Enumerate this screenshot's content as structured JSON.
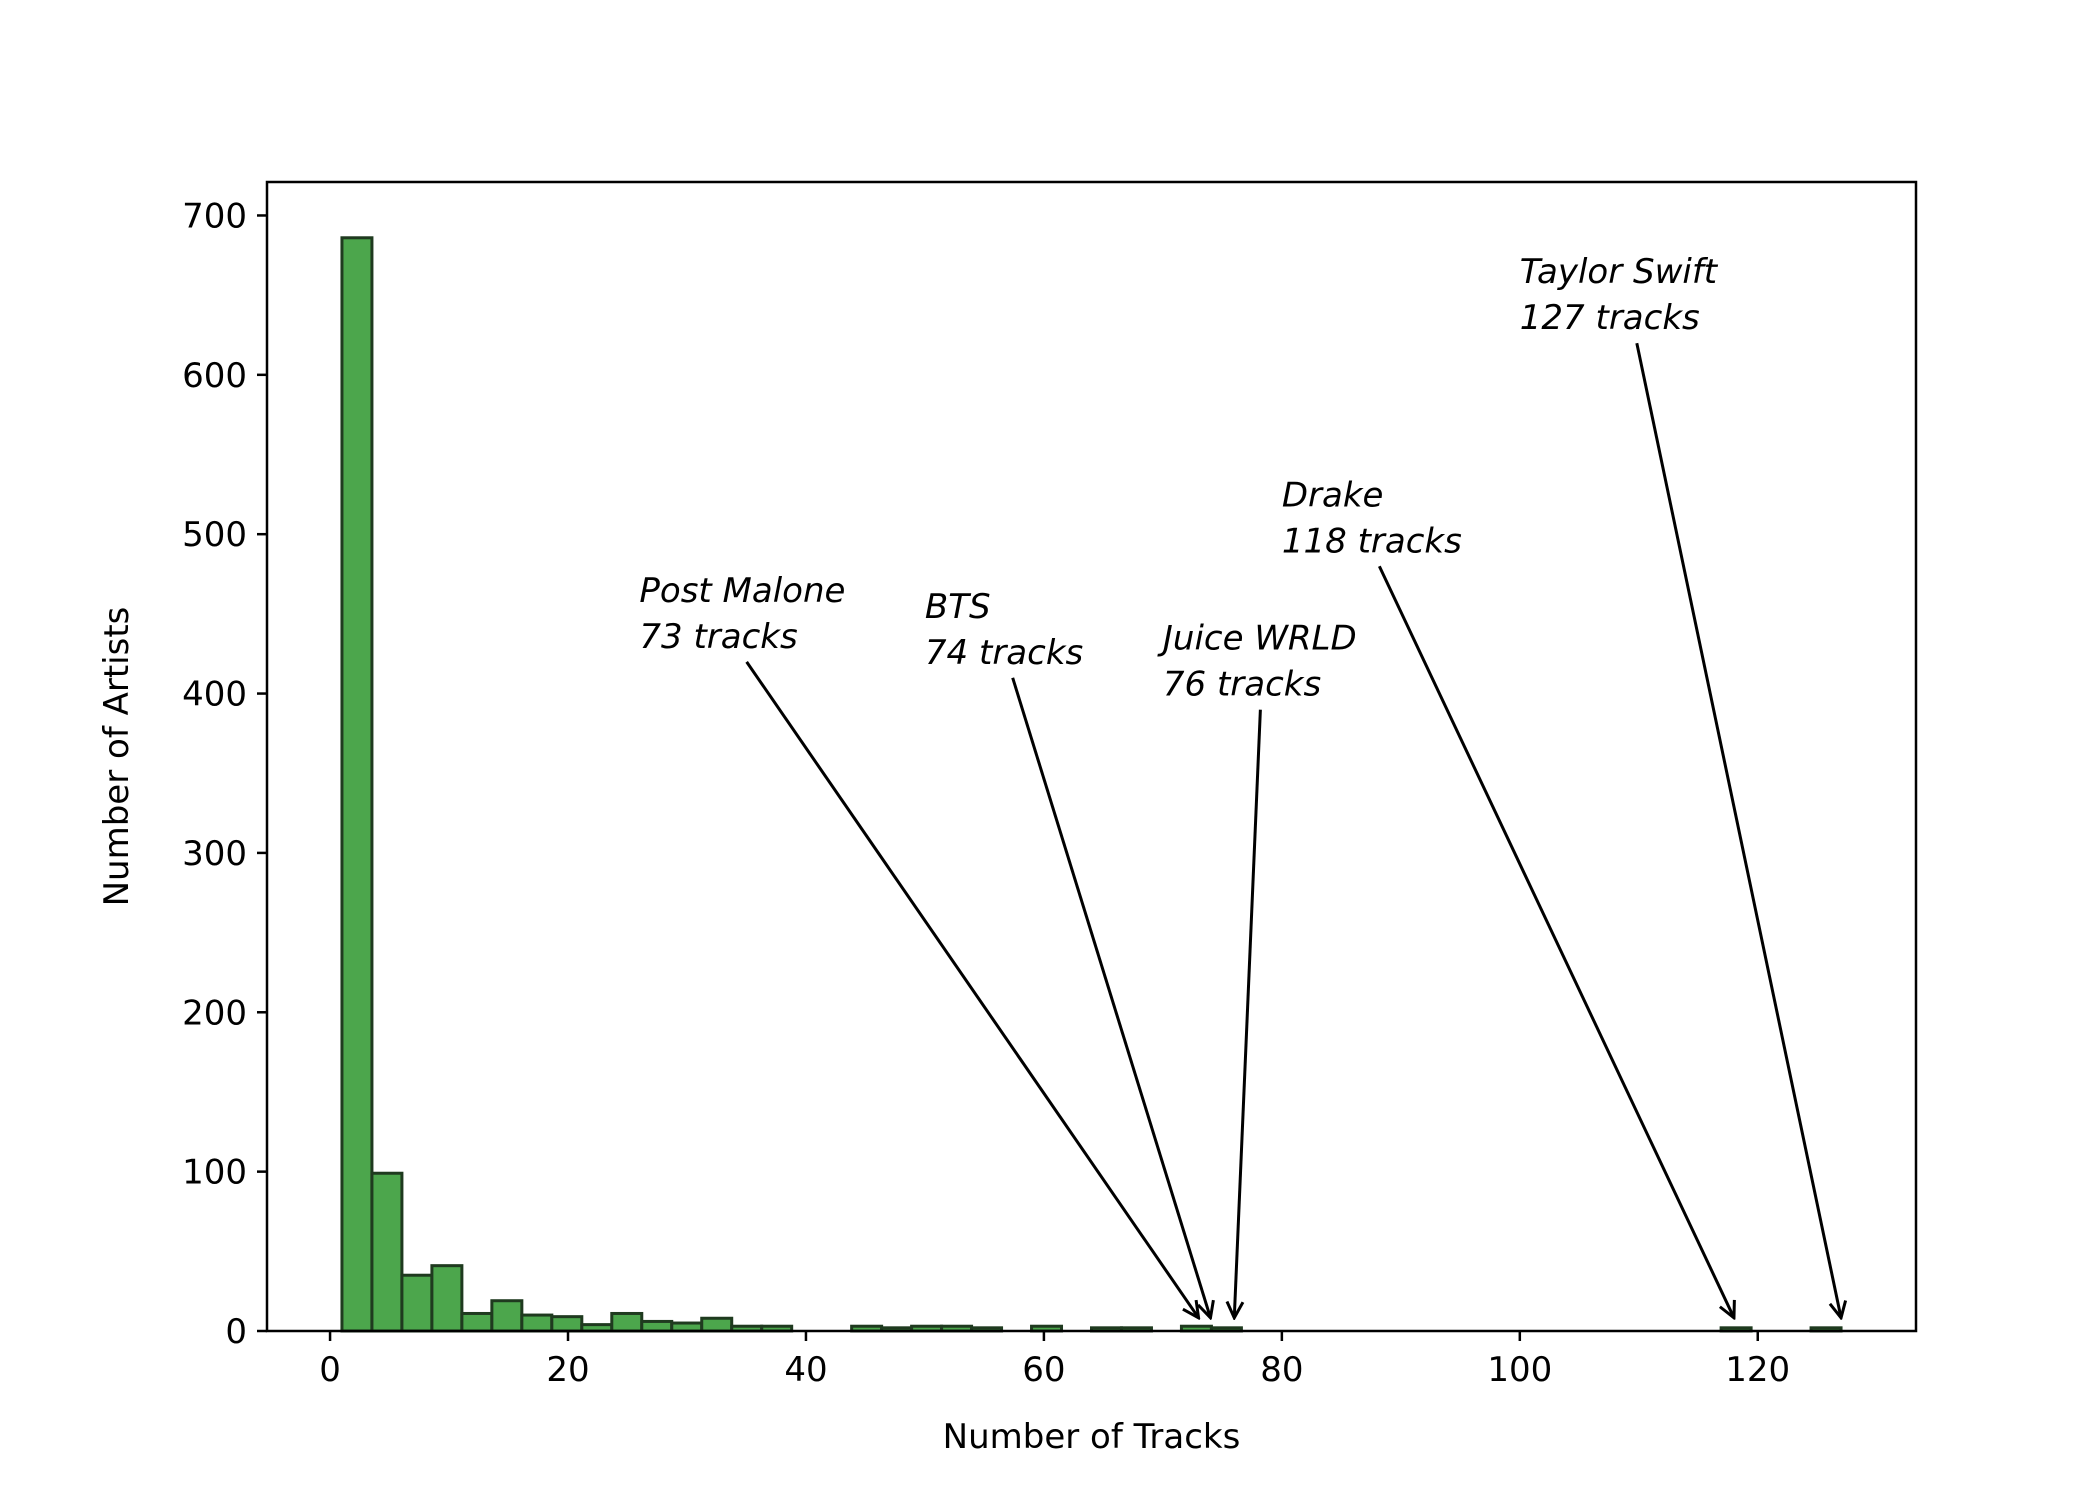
{
  "chart_data": {
    "type": "bar",
    "title": "",
    "xlabel": "Number of Tracks",
    "ylabel": "Number of Artists",
    "xlim": [
      -5.3,
      133.3
    ],
    "ylim": [
      0,
      721
    ],
    "xticks": [
      "0",
      "20",
      "40",
      "60",
      "80",
      "100",
      "120"
    ],
    "yticks": [
      "0",
      "100",
      "200",
      "300",
      "400",
      "500",
      "600",
      "700"
    ],
    "bar_color": "#4ca64c",
    "edge_color": "#1f3a1f",
    "bin_width": 2.52,
    "bins_start": [
      1,
      3.52,
      6.04,
      8.56,
      11.08,
      13.6,
      16.12,
      18.64,
      21.16,
      23.68,
      26.2,
      28.72,
      31.24,
      33.76,
      36.28,
      38.8,
      41.32,
      43.84,
      46.36,
      48.88,
      51.4,
      53.92,
      56.44,
      58.96,
      61.48,
      64,
      66.52,
      69.04,
      71.56,
      74.08,
      76.6,
      79.12,
      81.64,
      84.16,
      86.68,
      89.2,
      91.72,
      94.24,
      96.76,
      99.28,
      101.8,
      104.32,
      106.84,
      109.36,
      111.88,
      114.4,
      116.92,
      119.44,
      121.96,
      124.48
    ],
    "values": [
      686,
      99,
      35,
      41,
      11,
      19,
      10,
      9,
      4,
      11,
      6,
      5,
      8,
      3,
      3,
      0,
      0,
      3,
      2,
      3,
      3,
      2,
      0,
      3,
      0,
      2,
      2,
      0,
      3,
      2,
      0,
      0,
      0,
      0,
      0,
      0,
      0,
      0,
      0,
      0,
      0,
      0,
      0,
      0,
      0,
      0,
      2,
      0,
      0,
      2
    ],
    "annotations": [
      {
        "name": "Post Malone",
        "line1": "Post Malone",
        "line2": "73 tracks",
        "x": 73,
        "text_x": 26,
        "text_y": 450
      },
      {
        "name": "BTS",
        "line1": "BTS",
        "line2": "74 tracks",
        "x": 74,
        "text_x": 50,
        "text_y": 440
      },
      {
        "name": "Juice WRLD",
        "line1": "Juice WRLD",
        "line2": "76 tracks",
        "x": 76,
        "text_x": 70,
        "text_y": 420
      },
      {
        "name": "Drake",
        "line1": "Drake",
        "line2": "118 tracks",
        "x": 118,
        "text_x": 80,
        "text_y": 510
      },
      {
        "name": "Taylor Swift",
        "line1": "Taylor Swift",
        "line2": "127 tracks",
        "x": 127,
        "text_x": 100,
        "text_y": 650
      }
    ]
  }
}
